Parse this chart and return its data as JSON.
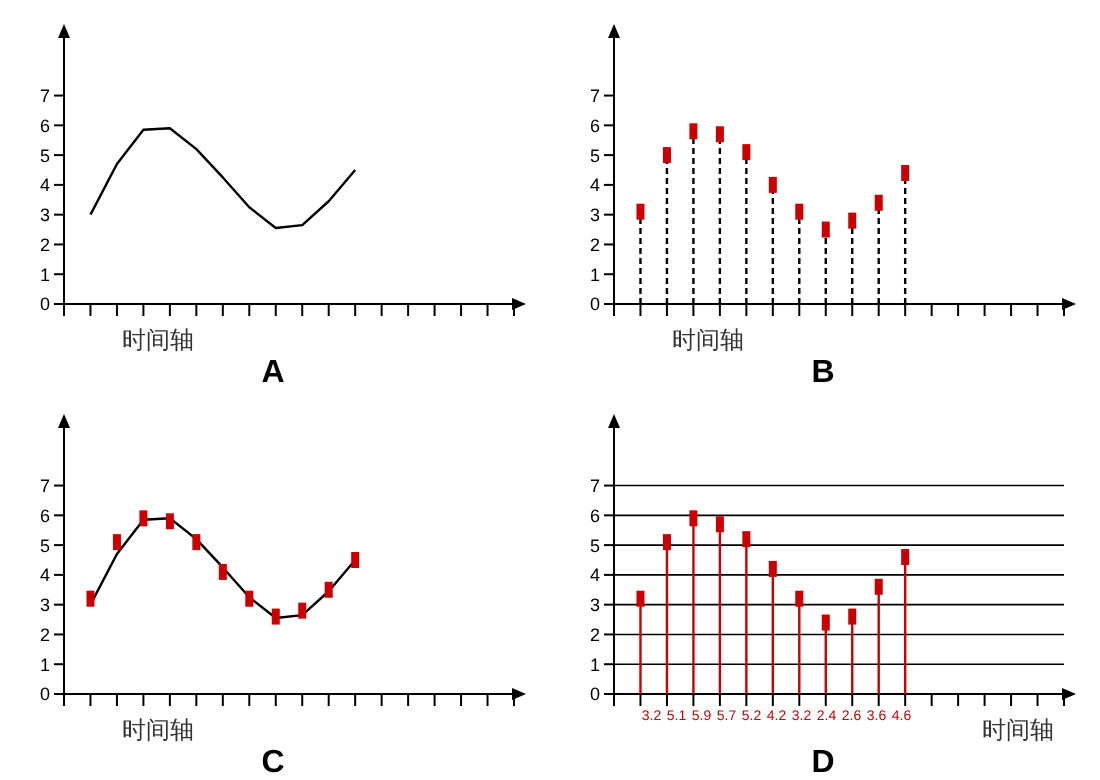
{
  "chart_data": [
    {
      "type": "line",
      "title": "A",
      "xlabel": "时间轴",
      "categories": [
        null,
        null,
        null,
        null,
        null,
        null,
        null,
        null,
        null,
        null,
        null,
        null,
        null,
        null,
        null,
        null,
        null,
        null
      ],
      "ylim": [
        0,
        9
      ],
      "yticks": [
        0,
        1,
        2,
        3,
        4,
        5,
        6,
        7
      ],
      "series": [
        {
          "color": "#000000",
          "values": [
            null,
            3.0,
            4.7,
            5.85,
            5.9,
            5.2,
            4.25,
            3.25,
            2.55,
            2.65,
            3.45,
            4.5,
            null,
            null,
            null,
            null,
            null,
            null
          ]
        }
      ]
    },
    {
      "type": "lollipop",
      "title": "B",
      "xlabel": "时间轴",
      "categories": [
        null,
        null,
        null,
        null,
        null,
        null,
        null,
        null,
        null,
        null,
        null,
        null,
        null,
        null,
        null,
        null,
        null,
        null
      ],
      "ylim": [
        0,
        9
      ],
      "yticks": [
        0,
        1,
        2,
        3,
        4,
        5,
        6,
        7
      ],
      "marker": "square",
      "line_style": "dashed",
      "series": [
        {
          "color": "#cc0000",
          "values": [
            null,
            3.1,
            5.0,
            5.8,
            5.7,
            5.1,
            4.0,
            3.1,
            2.5,
            2.8,
            3.4,
            4.4,
            null,
            null,
            null,
            null,
            null,
            null
          ]
        }
      ]
    },
    {
      "type": "scatter",
      "title": "C",
      "xlabel": "时间轴",
      "categories": [
        null,
        null,
        null,
        null,
        null,
        null,
        null,
        null,
        null,
        null,
        null,
        null,
        null,
        null,
        null,
        null,
        null,
        null
      ],
      "ylim": [
        0,
        9
      ],
      "yticks": [
        0,
        1,
        2,
        3,
        4,
        5,
        6,
        7
      ],
      "marker": "square",
      "series": [
        {
          "type": "line",
          "marker": "none",
          "color": "#000000",
          "values": [
            null,
            3.0,
            4.7,
            5.85,
            5.9,
            5.2,
            4.25,
            3.25,
            2.55,
            2.65,
            3.45,
            4.5,
            null,
            null,
            null,
            null,
            null,
            null
          ]
        },
        {
          "color": "#cc0000",
          "values": [
            null,
            3.2,
            5.1,
            5.9,
            5.8,
            5.1,
            4.1,
            3.2,
            2.6,
            2.8,
            3.5,
            4.5,
            null,
            null,
            null,
            null,
            null,
            null
          ]
        }
      ]
    },
    {
      "type": "lollipop",
      "title": "D",
      "xlabel": "时间轴",
      "categories": [
        null,
        null,
        null,
        null,
        null,
        null,
        null,
        null,
        null,
        null,
        null,
        null,
        null,
        null,
        null,
        null,
        null,
        null
      ],
      "ylim": [
        0,
        9
      ],
      "yticks": [
        0,
        1,
        2,
        3,
        4,
        5,
        6,
        7
      ],
      "marker": "square",
      "line_style": "solid",
      "grid": "y",
      "data_labels": true,
      "series": [
        {
          "color": "#cc0000",
          "values": [
            null,
            3.2,
            5.1,
            5.9,
            5.7,
            5.2,
            4.2,
            3.2,
            2.4,
            2.6,
            3.6,
            4.6,
            null,
            null,
            null,
            null,
            null,
            null
          ]
        }
      ]
    }
  ]
}
